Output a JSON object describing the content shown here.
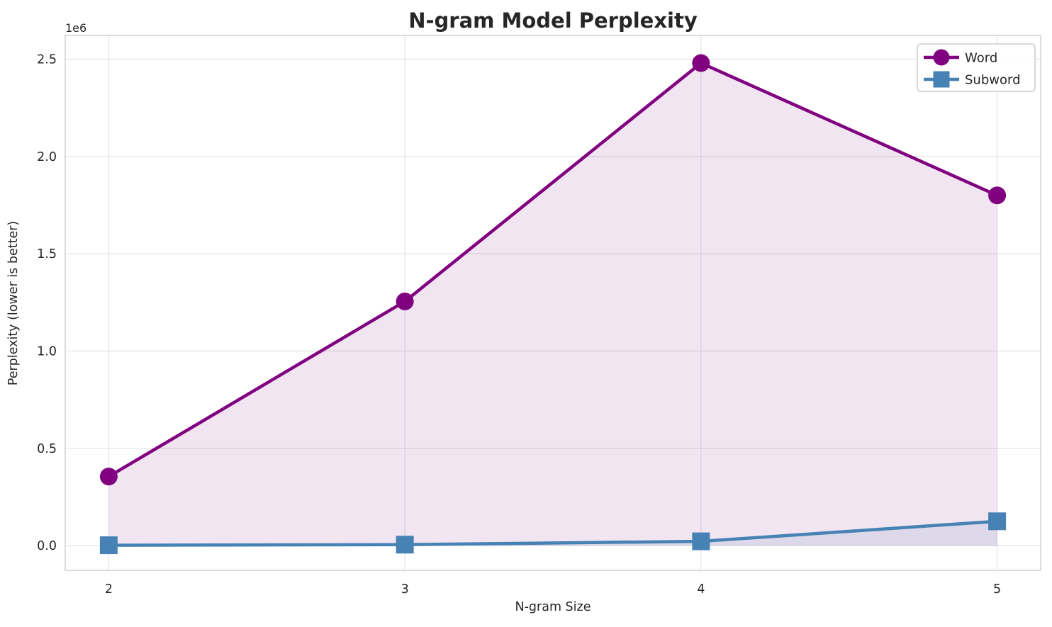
{
  "chart_data": {
    "type": "line",
    "title": "N-gram Model Perplexity",
    "xlabel": "N-gram Size",
    "ylabel": "Perplexity (lower is better)",
    "y_axis_multiplier_label": "1e6",
    "x": [
      2,
      3,
      4,
      5
    ],
    "xtick_labels": [
      "2",
      "3",
      "4",
      "5"
    ],
    "ytick_values": [
      0,
      500000,
      1000000,
      1500000,
      2000000,
      2500000
    ],
    "ytick_labels": [
      "0.0",
      "0.5",
      "1.0",
      "1.5",
      "2.0",
      "2.5"
    ],
    "xlim": [
      1.853,
      5.147
    ],
    "ylim": [
      -127000,
      2622000
    ],
    "grid": true,
    "legend_position": "upper right",
    "series": [
      {
        "name": "Word",
        "color": "#800080",
        "marker": "circle",
        "fill_to_zero": true,
        "fill_alpha": 0.1,
        "values": [
          355000,
          1255000,
          2480000,
          1800000
        ]
      },
      {
        "name": "Subword",
        "color": "#4682B4",
        "marker": "square",
        "fill_to_zero": true,
        "fill_alpha": 0.12,
        "values": [
          2000,
          5000,
          22000,
          125000
        ]
      }
    ],
    "colors": {
      "grid": "#e7e7e7",
      "spine": "#d4d4d4",
      "text": "#262626",
      "legend_border": "#cccccc",
      "background": "#ffffff"
    }
  }
}
